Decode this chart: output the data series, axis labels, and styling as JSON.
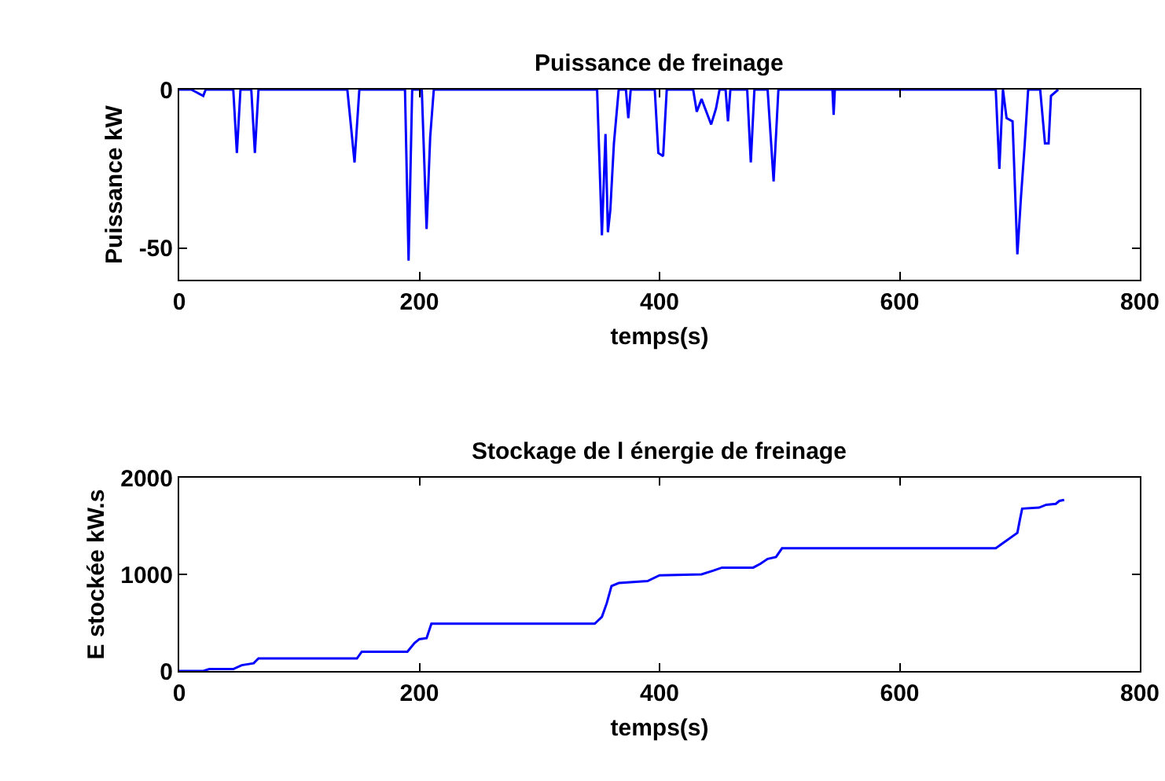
{
  "chart_data": [
    {
      "type": "line",
      "title": "Puissance de freinage",
      "xlabel": "temps(s)",
      "ylabel": "Puissance kW",
      "xlim": [
        0,
        800
      ],
      "xticks": [
        0,
        200,
        400,
        600,
        800
      ],
      "ylim": [
        -60,
        0
      ],
      "yticks": [
        -50,
        0
      ],
      "line_style": "solid",
      "series": [
        {
          "color": "#0000ff",
          "x": [
            0,
            10,
            15,
            20,
            22,
            45,
            48,
            51,
            60,
            63,
            66,
            140,
            146,
            150,
            188,
            191,
            194,
            202,
            206,
            209,
            212,
            348,
            352,
            355,
            357,
            359,
            362,
            366,
            372,
            374,
            376,
            396,
            399,
            403,
            406,
            428,
            431,
            435,
            440,
            443,
            447,
            450,
            455,
            457,
            459,
            473,
            476,
            479,
            490,
            495,
            499,
            544,
            545,
            546,
            680,
            683,
            686,
            689,
            694,
            698,
            701,
            704,
            707,
            717,
            721,
            724,
            726,
            732
          ],
          "values": [
            0,
            0,
            -1,
            -2,
            0,
            0,
            -20,
            0,
            0,
            -20,
            0,
            0,
            -23,
            0,
            0,
            -54,
            0,
            0,
            -44,
            -15,
            0,
            0,
            -46,
            -14,
            -45,
            -38,
            -17,
            0,
            0,
            -9,
            0,
            0,
            -20,
            -21,
            0,
            0,
            -7,
            -3,
            -8,
            -11,
            -6,
            0,
            0,
            -10,
            0,
            0,
            -23,
            0,
            0,
            -29,
            0,
            0,
            -8,
            0,
            0,
            -25,
            0,
            -9,
            -10,
            -52,
            -34,
            -18,
            0,
            0,
            -17,
            -17,
            -2,
            0
          ]
        }
      ]
    },
    {
      "type": "line",
      "title": "Stockage de l énergie de freinage",
      "xlabel": "temps(s)",
      "ylabel": "E stockée kW.s",
      "xlim": [
        0,
        800
      ],
      "xticks": [
        0,
        200,
        400,
        600,
        800
      ],
      "ylim": [
        0,
        2000
      ],
      "yticks": [
        0,
        1000,
        2000
      ],
      "line_style": "solid",
      "series": [
        {
          "color": "#0000ff",
          "x": [
            0,
            20,
            25,
            45,
            52,
            62,
            66,
            148,
            152,
            190,
            196,
            200,
            206,
            210,
            346,
            352,
            356,
            360,
            366,
            390,
            400,
            435,
            445,
            452,
            478,
            484,
            490,
            497,
            502,
            680,
            698,
            700,
            702,
            716,
            722,
            730,
            733,
            737
          ],
          "values": [
            0,
            0,
            20,
            20,
            60,
            80,
            130,
            130,
            200,
            200,
            290,
            330,
            340,
            490,
            490,
            560,
            700,
            880,
            910,
            930,
            990,
            1000,
            1040,
            1070,
            1070,
            1110,
            1160,
            1180,
            1270,
            1270,
            1430,
            1560,
            1680,
            1690,
            1720,
            1730,
            1760,
            1770
          ]
        }
      ]
    }
  ]
}
